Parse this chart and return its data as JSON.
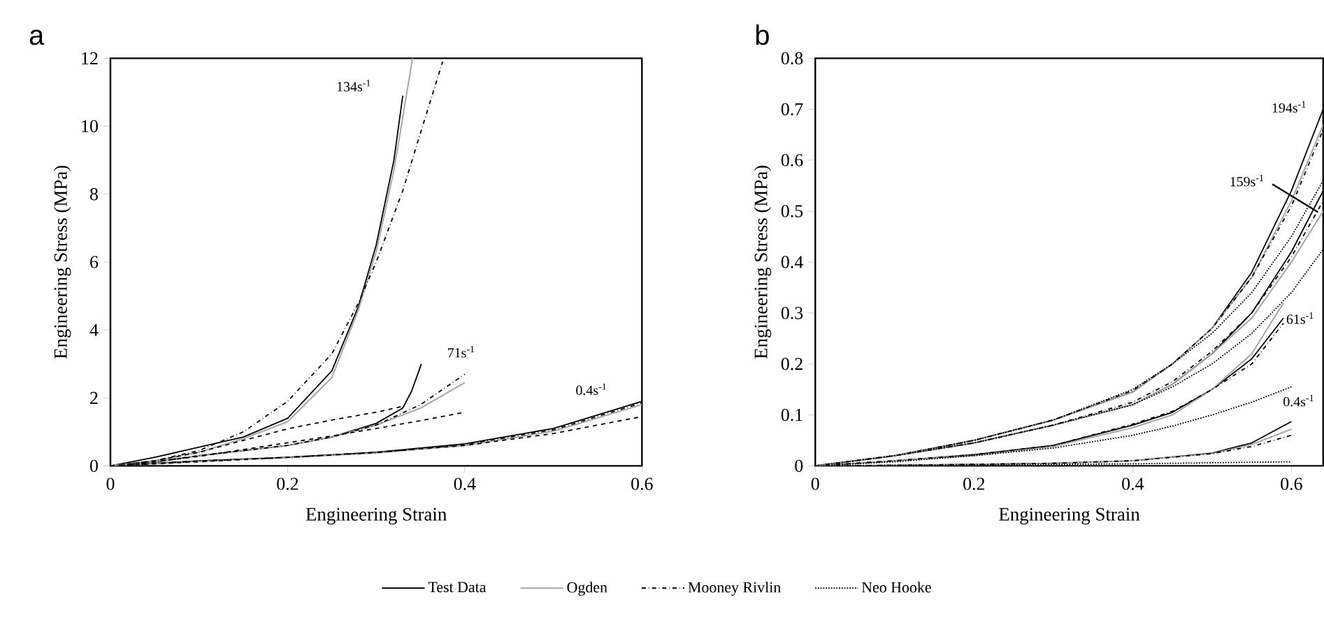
{
  "chart_data": [
    {
      "type": "line",
      "title": "a",
      "xlabel": "Engineering Strain",
      "ylabel": "Engineering  Stress (MPa)",
      "xlim": [
        0,
        0.6
      ],
      "ylim": [
        0,
        12
      ],
      "xticks": [
        0,
        0.2,
        0.4,
        0.6
      ],
      "yticks": [
        0,
        2,
        4,
        6,
        8,
        10,
        12
      ],
      "grid": false,
      "legend": false,
      "annotations": [
        "134s$^{-1}$",
        "71s$^{-1}$",
        "0.4s$^{-1}$"
      ],
      "series": [
        {
          "color": "#000000",
          "line_style": "solid",
          "x": [
            0,
            0.05,
            0.1,
            0.15,
            0.2,
            0.25,
            0.28,
            0.3,
            0.32,
            0.33
          ],
          "values": [
            0,
            0.25,
            0.55,
            0.85,
            1.4,
            2.8,
            4.7,
            6.5,
            9.0,
            10.9
          ]
        },
        {
          "color": "#a6a6a6",
          "line_style": "solid",
          "x": [
            0,
            0.05,
            0.1,
            0.15,
            0.2,
            0.25,
            0.28,
            0.3,
            0.32,
            0.341
          ],
          "values": [
            0,
            0.15,
            0.4,
            0.8,
            1.3,
            2.6,
            4.6,
            6.3,
            8.7,
            12
          ]
        },
        {
          "color": "#000000",
          "line_style": "dashdot",
          "x": [
            0,
            0.05,
            0.1,
            0.15,
            0.2,
            0.25,
            0.28,
            0.3,
            0.33,
            0.35,
            0.375
          ],
          "values": [
            0,
            0.15,
            0.45,
            1.0,
            1.9,
            3.3,
            4.8,
            6.0,
            8.1,
            9.8,
            11.9
          ]
        },
        {
          "color": "#000000",
          "line_style": "dashed",
          "x": [
            0,
            0.05,
            0.1,
            0.15,
            0.2,
            0.25,
            0.3,
            0.33
          ],
          "values": [
            0,
            0.15,
            0.4,
            0.75,
            1.09,
            1.35,
            1.58,
            1.75
          ]
        },
        {
          "color": "#000000",
          "line_style": "solid",
          "x": [
            0,
            0.05,
            0.1,
            0.15,
            0.2,
            0.25,
            0.3,
            0.33,
            0.34,
            0.351
          ],
          "values": [
            0,
            0.12,
            0.3,
            0.45,
            0.6,
            0.85,
            1.25,
            1.7,
            2.2,
            3.0
          ]
        },
        {
          "color": "#a6a6a6",
          "line_style": "solid",
          "x": [
            0,
            0.05,
            0.1,
            0.15,
            0.2,
            0.25,
            0.3,
            0.35,
            0.4
          ],
          "values": [
            0,
            0.12,
            0.3,
            0.45,
            0.6,
            0.85,
            1.2,
            1.7,
            2.45
          ]
        },
        {
          "color": "#000000",
          "line_style": "dashdot",
          "x": [
            0,
            0.05,
            0.1,
            0.15,
            0.2,
            0.25,
            0.3,
            0.35,
            0.4
          ],
          "values": [
            0,
            0.12,
            0.3,
            0.45,
            0.6,
            0.85,
            1.2,
            1.8,
            2.7
          ]
        },
        {
          "color": "#000000",
          "line_style": "dashed",
          "x": [
            0,
            0.05,
            0.1,
            0.15,
            0.2,
            0.25,
            0.3,
            0.35,
            0.4
          ],
          "values": [
            0,
            0.12,
            0.28,
            0.48,
            0.68,
            0.88,
            1.1,
            1.33,
            1.58
          ]
        },
        {
          "color": "#000000",
          "line_style": "solid",
          "x": [
            0,
            0.1,
            0.2,
            0.3,
            0.4,
            0.5,
            0.6
          ],
          "values": [
            0,
            0.15,
            0.25,
            0.4,
            0.65,
            1.1,
            1.9
          ]
        },
        {
          "color": "#a6a6a6",
          "line_style": "solid",
          "x": [
            0,
            0.1,
            0.2,
            0.3,
            0.4,
            0.5,
            0.6
          ],
          "values": [
            0,
            0.13,
            0.24,
            0.38,
            0.6,
            1.02,
            1.8
          ]
        },
        {
          "color": "#000000",
          "line_style": "dashdot",
          "x": [
            0,
            0.1,
            0.2,
            0.3,
            0.4,
            0.5,
            0.6
          ],
          "values": [
            0,
            0.14,
            0.25,
            0.39,
            0.63,
            1.06,
            1.85
          ]
        },
        {
          "color": "#000000",
          "line_style": "dashed",
          "x": [
            0,
            0.1,
            0.2,
            0.3,
            0.4,
            0.5,
            0.6
          ],
          "values": [
            0,
            0.12,
            0.25,
            0.4,
            0.6,
            0.95,
            1.45
          ]
        }
      ]
    },
    {
      "type": "line",
      "title": "b",
      "xlabel": "Engineering Strain",
      "ylabel": "Engineering Stress (MPa)",
      "xlim": [
        0,
        0.64
      ],
      "ylim": [
        0,
        0.8
      ],
      "xticks": [
        0,
        0.2,
        0.4,
        0.6
      ],
      "yticks": [
        0,
        0.1,
        0.2,
        0.3,
        0.4,
        0.5,
        0.6,
        0.7,
        0.8
      ],
      "grid": false,
      "legend": "bottom",
      "annotations": [
        "194s$^{-1}$",
        "159s$^{-1}$",
        "61s$^{-1}$",
        "0.4s$^{-1}$"
      ],
      "series": [
        {
          "name": "Test Data",
          "color": "#000000",
          "line_style": "solid",
          "x": [
            0,
            0.1,
            0.2,
            0.3,
            0.4,
            0.45,
            0.5,
            0.55,
            0.6,
            0.64
          ],
          "values": [
            0,
            0.02,
            0.05,
            0.09,
            0.145,
            0.2,
            0.27,
            0.38,
            0.54,
            0.7
          ]
        },
        {
          "name": "Ogden",
          "color": "#a6a6a6",
          "line_style": "solid",
          "x": [
            0,
            0.1,
            0.2,
            0.3,
            0.4,
            0.45,
            0.5,
            0.55,
            0.6,
            0.64
          ],
          "values": [
            0,
            0.02,
            0.05,
            0.09,
            0.145,
            0.2,
            0.27,
            0.37,
            0.52,
            0.67
          ]
        },
        {
          "name": "Mooney Rivlin",
          "color": "#000000",
          "line_style": "dashdot",
          "x": [
            0,
            0.1,
            0.2,
            0.3,
            0.4,
            0.45,
            0.5,
            0.55,
            0.6,
            0.64
          ],
          "values": [
            0,
            0.02,
            0.05,
            0.09,
            0.148,
            0.2,
            0.27,
            0.37,
            0.51,
            0.66
          ]
        },
        {
          "name": "Neo Hooke",
          "color": "#000000",
          "line_style": "dotted",
          "x": [
            0,
            0.1,
            0.2,
            0.3,
            0.4,
            0.45,
            0.5,
            0.55,
            0.6,
            0.64
          ],
          "values": [
            0,
            0.02,
            0.05,
            0.09,
            0.15,
            0.2,
            0.26,
            0.34,
            0.45,
            0.56
          ]
        },
        {
          "color": "#000000",
          "line_style": "solid",
          "x": [
            0,
            0.1,
            0.2,
            0.3,
            0.4,
            0.45,
            0.5,
            0.55,
            0.6,
            0.64
          ],
          "values": [
            0,
            0.02,
            0.045,
            0.08,
            0.12,
            0.16,
            0.22,
            0.3,
            0.42,
            0.54
          ]
        },
        {
          "color": "#a6a6a6",
          "line_style": "solid",
          "x": [
            0,
            0.1,
            0.2,
            0.3,
            0.4,
            0.45,
            0.5,
            0.55,
            0.6,
            0.64
          ],
          "values": [
            0,
            0.02,
            0.045,
            0.08,
            0.12,
            0.16,
            0.22,
            0.29,
            0.4,
            0.5
          ]
        },
        {
          "color": "#000000",
          "line_style": "dashdot",
          "x": [
            0,
            0.1,
            0.2,
            0.3,
            0.4,
            0.45,
            0.5,
            0.55,
            0.6,
            0.64
          ],
          "values": [
            0,
            0.02,
            0.045,
            0.08,
            0.125,
            0.165,
            0.225,
            0.3,
            0.41,
            0.52
          ]
        },
        {
          "color": "#000000",
          "line_style": "dotted",
          "x": [
            0,
            0.1,
            0.2,
            0.3,
            0.4,
            0.45,
            0.5,
            0.55,
            0.6,
            0.64
          ],
          "values": [
            0,
            0.02,
            0.045,
            0.08,
            0.12,
            0.155,
            0.2,
            0.26,
            0.34,
            0.425
          ]
        },
        {
          "color": "#000000",
          "line_style": "solid",
          "x": [
            0,
            0.1,
            0.2,
            0.3,
            0.4,
            0.45,
            0.5,
            0.55,
            0.59
          ],
          "values": [
            0,
            0.01,
            0.022,
            0.04,
            0.08,
            0.105,
            0.15,
            0.21,
            0.29
          ]
        },
        {
          "color": "#a6a6a6",
          "line_style": "solid",
          "x": [
            0,
            0.1,
            0.2,
            0.3,
            0.4,
            0.45,
            0.5,
            0.55,
            0.59
          ],
          "values": [
            0,
            0.01,
            0.02,
            0.038,
            0.075,
            0.1,
            0.15,
            0.22,
            0.32
          ]
        },
        {
          "color": "#000000",
          "line_style": "dashdot",
          "x": [
            0,
            0.1,
            0.2,
            0.3,
            0.4,
            0.45,
            0.5,
            0.55,
            0.59
          ],
          "values": [
            0,
            0.01,
            0.022,
            0.04,
            0.082,
            0.107,
            0.15,
            0.2,
            0.28
          ]
        },
        {
          "color": "#000000",
          "line_style": "dotted",
          "x": [
            0,
            0.1,
            0.2,
            0.3,
            0.4,
            0.45,
            0.5,
            0.55,
            0.6
          ],
          "values": [
            0,
            0.008,
            0.02,
            0.035,
            0.06,
            0.078,
            0.1,
            0.125,
            0.155
          ]
        },
        {
          "color": "#000000",
          "line_style": "solid",
          "x": [
            0,
            0.1,
            0.2,
            0.3,
            0.4,
            0.5,
            0.55,
            0.6
          ],
          "values": [
            0,
            0.001,
            0.003,
            0.005,
            0.01,
            0.025,
            0.045,
            0.087
          ]
        },
        {
          "color": "#a6a6a6",
          "line_style": "solid",
          "x": [
            0,
            0.1,
            0.2,
            0.3,
            0.4,
            0.5,
            0.55,
            0.6
          ],
          "values": [
            0,
            0.001,
            0.003,
            0.005,
            0.01,
            0.024,
            0.042,
            0.072
          ]
        },
        {
          "color": "#000000",
          "line_style": "dashdot",
          "x": [
            0,
            0.1,
            0.2,
            0.3,
            0.4,
            0.5,
            0.55,
            0.6
          ],
          "values": [
            0,
            0.001,
            0.003,
            0.005,
            0.01,
            0.024,
            0.038,
            0.06
          ]
        },
        {
          "color": "#000000",
          "line_style": "dotted",
          "x": [
            0,
            0.1,
            0.2,
            0.3,
            0.4,
            0.5,
            0.6
          ],
          "values": [
            0,
            0.001,
            0.002,
            0.003,
            0.004,
            0.006,
            0.008
          ]
        }
      ]
    }
  ]
}
